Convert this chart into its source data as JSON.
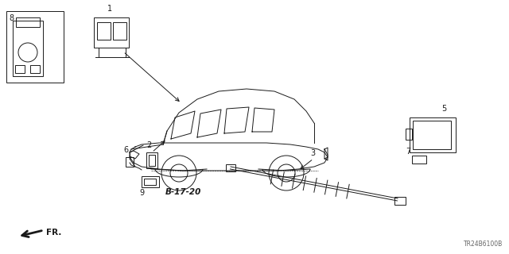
{
  "bg_color": "#ffffff",
  "line_color": "#1a1a1a",
  "ref_code": "B-17-20",
  "catalog_code": "TR24B6100B",
  "fr_label": "FR.",
  "figsize": [
    6.4,
    3.2
  ],
  "dpi": 100
}
